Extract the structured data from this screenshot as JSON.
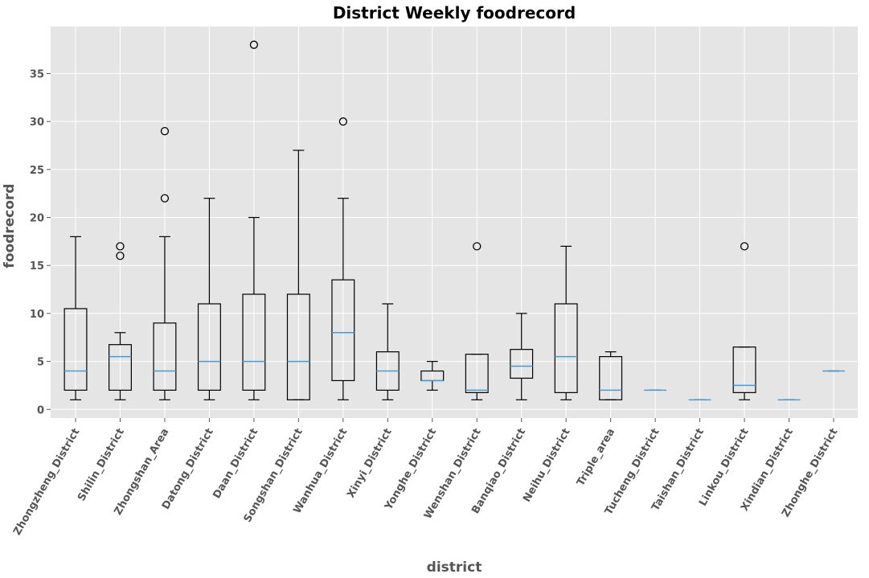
{
  "chart_data": {
    "type": "box",
    "title": "District Weekly foodrecord",
    "xlabel": "district",
    "ylabel": "foodrecord",
    "ylim": [
      -0.9,
      39.9
    ],
    "yticks": [
      0,
      5,
      10,
      15,
      20,
      25,
      30,
      35
    ],
    "grid": true,
    "legend": "none",
    "colors": {
      "background": "#e5e5e5",
      "grid": "#ffffff",
      "box": "#000000",
      "median": "#4c9bd0",
      "tick_text": "#555555"
    },
    "categories": [
      "Zhongzheng_District",
      "Shilin_District",
      "Zhongshan_Area",
      "Datong_District",
      "Daan_District",
      "Songshan_District",
      "Wanhua_District",
      "Xinyi_District",
      "Yonghe_District",
      "Wenshan_District",
      "Banqiao_District",
      "Neihu_District",
      "Triple_area",
      "Tucheng_District",
      "Taishan_District",
      "Linkou_District",
      "Xindian_District",
      "Zhonghe_District"
    ],
    "boxes": [
      {
        "whislo": 1,
        "q1": 2,
        "med": 4,
        "q3": 10.5,
        "whishi": 18,
        "fliers": []
      },
      {
        "whislo": 1,
        "q1": 2,
        "med": 5.5,
        "q3": 6.75,
        "whishi": 8,
        "fliers": [
          16,
          17
        ]
      },
      {
        "whislo": 1,
        "q1": 2,
        "med": 4,
        "q3": 9,
        "whishi": 18,
        "fliers": [
          22,
          29
        ]
      },
      {
        "whislo": 1,
        "q1": 2,
        "med": 5,
        "q3": 11,
        "whishi": 22,
        "fliers": []
      },
      {
        "whislo": 1,
        "q1": 2,
        "med": 5,
        "q3": 12,
        "whishi": 20,
        "fliers": [
          38
        ]
      },
      {
        "whislo": 1,
        "q1": 1,
        "med": 5,
        "q3": 12,
        "whishi": 27,
        "fliers": []
      },
      {
        "whislo": 1,
        "q1": 3,
        "med": 8,
        "q3": 13.5,
        "whishi": 22,
        "fliers": [
          30
        ]
      },
      {
        "whislo": 1,
        "q1": 2,
        "med": 4,
        "q3": 6,
        "whishi": 11,
        "fliers": []
      },
      {
        "whislo": 2,
        "q1": 3,
        "med": 3,
        "q3": 4,
        "whishi": 5,
        "fliers": []
      },
      {
        "whislo": 1,
        "q1": 1.75,
        "med": 2,
        "q3": 5.75,
        "whishi": 5.75,
        "fliers": [
          17
        ]
      },
      {
        "whislo": 1,
        "q1": 3.25,
        "med": 4.5,
        "q3": 6.25,
        "whishi": 10,
        "fliers": []
      },
      {
        "whislo": 1,
        "q1": 1.75,
        "med": 5.5,
        "q3": 11,
        "whishi": 17,
        "fliers": []
      },
      {
        "whislo": 1,
        "q1": 1,
        "med": 2,
        "q3": 5.5,
        "whishi": 6,
        "fliers": []
      },
      {
        "whislo": 2,
        "q1": 2,
        "med": 2,
        "q3": 2,
        "whishi": 2,
        "fliers": []
      },
      {
        "whislo": 1,
        "q1": 1,
        "med": 1,
        "q3": 1,
        "whishi": 1,
        "fliers": []
      },
      {
        "whislo": 1,
        "q1": 1.75,
        "med": 2.5,
        "q3": 6.5,
        "whishi": 6.5,
        "fliers": [
          17
        ]
      },
      {
        "whislo": 1,
        "q1": 1,
        "med": 1,
        "q3": 1,
        "whishi": 1,
        "fliers": []
      },
      {
        "whislo": 4,
        "q1": 4,
        "med": 4,
        "q3": 4,
        "whishi": 4,
        "fliers": []
      }
    ]
  }
}
